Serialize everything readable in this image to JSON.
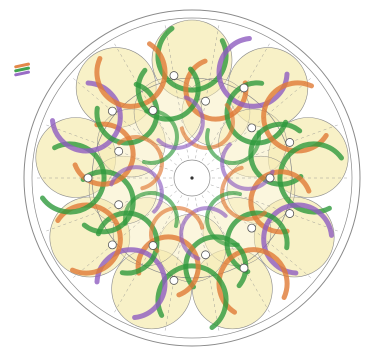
{
  "figure": {
    "kind": "rosette construction drawing",
    "colors": {
      "background": "#ffffff",
      "guide_line": "#8a8a8a",
      "fill_disc": "#f6ecb4",
      "green": "#2e9a3c",
      "orange": "#e07a36",
      "purple": "#8e5cc0",
      "node": "#ffffff"
    },
    "guide_circle_count": 4,
    "yellow_disc_count": 9,
    "inner_ring_disc_count": 9,
    "stroke_arc_count": 24,
    "legend_swatch_colors": [
      "orange",
      "green",
      "purple"
    ]
  }
}
